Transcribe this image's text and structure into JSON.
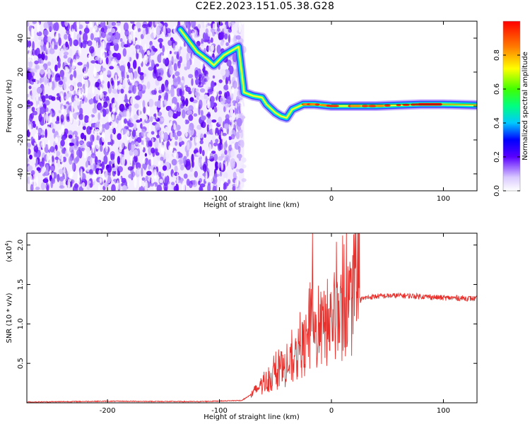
{
  "title": "C2E2.2023.151.05.38.G28",
  "chart_data": [
    {
      "type": "heatmap",
      "xlabel": "Height of straight line (km)",
      "ylabel": "Frequency (Hz)",
      "xlim": [
        -272,
        130
      ],
      "ylim": [
        -50,
        50
      ],
      "x_ticks": [
        -200,
        -100,
        0,
        100
      ],
      "x_tick_labels": [
        "-200",
        "-100",
        "0",
        "100"
      ],
      "y_ticks": [
        40,
        20,
        0,
        -20,
        -40
      ],
      "y_tick_labels": [
        "40",
        "20",
        "0",
        "-20",
        "-40"
      ],
      "colorbar": {
        "label": "Normalized spectral amplitude",
        "range": [
          0,
          1
        ],
        "ticks": [
          0.0,
          0.2,
          0.4,
          0.6,
          0.8
        ],
        "tick_labels": [
          "0.0",
          "0.2",
          "0.4",
          "0.6",
          "0.8"
        ]
      },
      "noise_region_x": [
        -272,
        -78
      ],
      "doppler_track": [
        {
          "x": -135,
          "f": 45
        },
        {
          "x": -120,
          "f": 32
        },
        {
          "x": -110,
          "f": 27
        },
        {
          "x": -105,
          "f": 24
        },
        {
          "x": -96,
          "f": 30
        },
        {
          "x": -83,
          "f": 35
        },
        {
          "x": -78,
          "f": 8
        },
        {
          "x": -70,
          "f": 6
        },
        {
          "x": -62,
          "f": 5
        },
        {
          "x": -58,
          "f": 1
        },
        {
          "x": -50,
          "f": -4
        },
        {
          "x": -45,
          "f": -6
        },
        {
          "x": -40,
          "f": -7
        },
        {
          "x": -35,
          "f": -2
        },
        {
          "x": -25,
          "f": 1
        },
        {
          "x": -15,
          "f": 1
        },
        {
          "x": 0,
          "f": 0
        },
        {
          "x": 20,
          "f": 0
        },
        {
          "x": 40,
          "f": 0
        },
        {
          "x": 60,
          "f": 0.5
        },
        {
          "x": 80,
          "f": 1
        },
        {
          "x": 100,
          "f": 1
        },
        {
          "x": 130,
          "f": 0.5
        }
      ]
    },
    {
      "type": "line",
      "xlabel": "Height of straight line (km)",
      "ylabel": "SNR (10 * v/v)",
      "y_scale_label": "(x10",
      "y_scale_exponent": "4",
      "y_scale_close": ")",
      "xlim": [
        -272,
        130
      ],
      "ylim": [
        0,
        21500
      ],
      "x_ticks": [
        -200,
        -100,
        0,
        100
      ],
      "x_tick_labels": [
        "-200",
        "-100",
        "0",
        "100"
      ],
      "y_ticks": [
        5000,
        10000,
        15000,
        20000
      ],
      "y_tick_labels": [
        "0.5",
        "1.0",
        "1.5",
        "2.0"
      ],
      "series": [
        {
          "color": "#e8302c",
          "x": [
            -272,
            -200,
            -120,
            -80,
            -70,
            -65,
            -60,
            -55,
            -50,
            -45,
            -40,
            -35,
            -30,
            -25,
            -20,
            -17,
            -15,
            -10,
            -5,
            0,
            5,
            10,
            15,
            20,
            25,
            30,
            40,
            60,
            80,
            100,
            110,
            130
          ],
          "y": [
            100,
            200,
            150,
            300,
            1200,
            2000,
            2500,
            3000,
            3500,
            4000,
            4500,
            5000,
            6000,
            7000,
            8000,
            9000,
            8500,
            9000,
            9500,
            10500,
            11000,
            11500,
            12000,
            12500,
            13000,
            13300,
            13500,
            13600,
            13500,
            13300,
            13300,
            13200
          ],
          "peaks": [
            {
              "x": -17,
              "y": 21500
            },
            {
              "x": -20,
              "y": 14500
            },
            {
              "x": 8,
              "y": 14700
            },
            {
              "x": -28,
              "y": 11500
            },
            {
              "x": -10,
              "y": 12500
            }
          ]
        }
      ]
    }
  ]
}
